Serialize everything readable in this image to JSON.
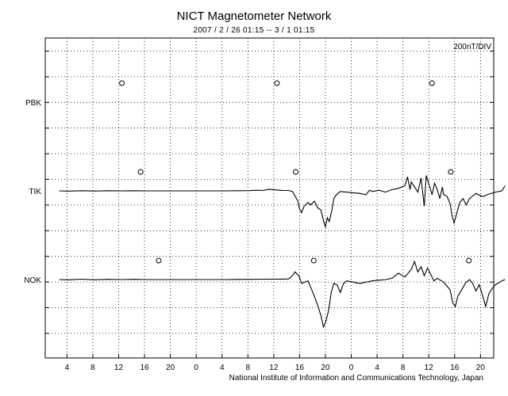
{
  "title": "NICT Magnetometer Network",
  "subtitle": "2007 / 2 / 26   01:15 --  3 / 1   01:15",
  "credit": "National Institute of Information and Communications Technology, Japan",
  "chart_data": {
    "type": "line",
    "scale_note": "200nT/DIV",
    "x_tick_labels": [
      "4",
      "8",
      "12",
      "16",
      "20",
      "0",
      "4",
      "8",
      "12",
      "16",
      "20",
      "0",
      "4",
      "8",
      "12",
      "16",
      "20",
      "0"
    ],
    "grid": "dotted",
    "stations": [
      {
        "name": "PBK",
        "midnight_markers_hour": [
          11.2,
          35.2,
          59.2
        ],
        "trace": []
      },
      {
        "name": "TIK",
        "midnight_markers_hour": [
          14.1,
          38.1,
          62.1
        ],
        "trace": [
          [
            1.5,
            0
          ],
          [
            3,
            -2
          ],
          [
            5,
            1
          ],
          [
            7,
            -1
          ],
          [
            9,
            1
          ],
          [
            11,
            0
          ],
          [
            13,
            1
          ],
          [
            15,
            0
          ],
          [
            17,
            0
          ],
          [
            19,
            0
          ],
          [
            21,
            0
          ],
          [
            23,
            0
          ],
          [
            25,
            0
          ],
          [
            27,
            0
          ],
          [
            29,
            1
          ],
          [
            31,
            2
          ],
          [
            32,
            5
          ],
          [
            33,
            3
          ],
          [
            34,
            12
          ],
          [
            35,
            8
          ],
          [
            36,
            4
          ],
          [
            37,
            3
          ],
          [
            37.6,
            -5
          ],
          [
            38,
            -40
          ],
          [
            38.4,
            -75
          ],
          [
            38.7,
            -140
          ],
          [
            39,
            -170
          ],
          [
            39.4,
            -120
          ],
          [
            40,
            -90
          ],
          [
            40.4,
            -110
          ],
          [
            41,
            -80
          ],
          [
            41.5,
            -130
          ],
          [
            42,
            -150
          ],
          [
            42.4,
            -230
          ],
          [
            42.7,
            -280
          ],
          [
            43,
            -210
          ],
          [
            43.3,
            -240
          ],
          [
            43.7,
            -150
          ],
          [
            44,
            -60
          ],
          [
            44.4,
            -30
          ],
          [
            45,
            -5
          ],
          [
            46,
            -10
          ],
          [
            47,
            -15
          ],
          [
            48,
            -20
          ],
          [
            49,
            -30
          ],
          [
            49.5,
            5
          ],
          [
            50,
            -5
          ],
          [
            51,
            5
          ],
          [
            52,
            -10
          ],
          [
            53,
            10
          ],
          [
            54,
            20
          ],
          [
            55,
            40
          ],
          [
            55.4,
            110
          ],
          [
            55.8,
            10
          ],
          [
            56,
            70
          ],
          [
            56.5,
            30
          ],
          [
            57,
            -10
          ],
          [
            57.5,
            100
          ],
          [
            58,
            -120
          ],
          [
            58.3,
            120
          ],
          [
            58.8,
            40
          ],
          [
            59.2,
            -30
          ],
          [
            59.6,
            60
          ],
          [
            60,
            10
          ],
          [
            60.4,
            -60
          ],
          [
            60.8,
            30
          ],
          [
            61,
            -30
          ],
          [
            61.5,
            -40
          ],
          [
            62,
            -100
          ],
          [
            62.3,
            -190
          ],
          [
            62.6,
            -250
          ],
          [
            63,
            -180
          ],
          [
            63.5,
            -90
          ],
          [
            64,
            -60
          ],
          [
            64.5,
            -110
          ],
          [
            65,
            -60
          ],
          [
            65.5,
            -40
          ],
          [
            66,
            -20
          ],
          [
            67,
            -45
          ],
          [
            68,
            -25
          ],
          [
            69,
            -10
          ],
          [
            70,
            0
          ],
          [
            70.5,
            40
          ]
        ]
      },
      {
        "name": "NOK",
        "midnight_markers_hour": [
          16.9,
          40.9,
          64.9
        ],
        "trace": [
          [
            1.5,
            0
          ],
          [
            3,
            -2
          ],
          [
            5,
            3
          ],
          [
            7,
            -2
          ],
          [
            9,
            2
          ],
          [
            11,
            0
          ],
          [
            13,
            2
          ],
          [
            15,
            0
          ],
          [
            17,
            0
          ],
          [
            19,
            0
          ],
          [
            21,
            0
          ],
          [
            23,
            0
          ],
          [
            25,
            0
          ],
          [
            27,
            0
          ],
          [
            29,
            1
          ],
          [
            31,
            2
          ],
          [
            33,
            3
          ],
          [
            36,
            4
          ],
          [
            37,
            5
          ],
          [
            37.5,
            25
          ],
          [
            38,
            60
          ],
          [
            38.6,
            30
          ],
          [
            39,
            -30
          ],
          [
            40,
            -10
          ],
          [
            40.5,
            -70
          ],
          [
            41,
            -130
          ],
          [
            41.5,
            -200
          ],
          [
            42,
            -280
          ],
          [
            42.4,
            -370
          ],
          [
            42.8,
            -320
          ],
          [
            43.2,
            -240
          ],
          [
            43.6,
            -100
          ],
          [
            44,
            -30
          ],
          [
            44.5,
            -40
          ],
          [
            45,
            -100
          ],
          [
            45.5,
            -30
          ],
          [
            46,
            -10
          ],
          [
            47,
            -20
          ],
          [
            48,
            -30
          ],
          [
            49,
            -20
          ],
          [
            50,
            -10
          ],
          [
            51,
            -5
          ],
          [
            52,
            0
          ],
          [
            53,
            10
          ],
          [
            54,
            50
          ],
          [
            55,
            20
          ],
          [
            56,
            80
          ],
          [
            56.5,
            140
          ],
          [
            57,
            60
          ],
          [
            57.5,
            100
          ],
          [
            58,
            30
          ],
          [
            58.5,
            90
          ],
          [
            59,
            40
          ],
          [
            59.5,
            -10
          ],
          [
            60,
            10
          ],
          [
            61,
            -20
          ],
          [
            62,
            -80
          ],
          [
            62.4,
            -180
          ],
          [
            62.8,
            -210
          ],
          [
            63.2,
            -130
          ],
          [
            64,
            -60
          ],
          [
            64.5,
            -20
          ],
          [
            65,
            0
          ],
          [
            65.5,
            -30
          ],
          [
            66,
            -90
          ],
          [
            66.5,
            -40
          ],
          [
            67,
            -120
          ],
          [
            67.5,
            -210
          ],
          [
            68,
            -110
          ],
          [
            68.5,
            -70
          ],
          [
            69,
            -40
          ],
          [
            70,
            -10
          ],
          [
            70.5,
            0
          ]
        ]
      }
    ]
  }
}
